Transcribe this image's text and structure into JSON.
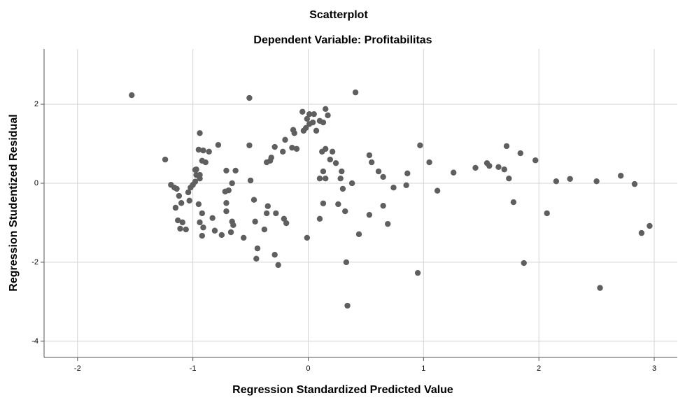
{
  "chart_data": {
    "type": "scatter",
    "title": "Scatterplot",
    "subtitle": "Dependent Variable: Profitabilitas",
    "x_label": "Regression Standardized Predicted Value",
    "y_label": "Regression Studentized Residual",
    "color": "#5f5f5f",
    "grid": true,
    "xlim": [
      -2.29,
      3.2
    ],
    "ylim": [
      -4.41,
      3.4
    ],
    "xticks": [
      -2,
      -1,
      0,
      1,
      2,
      3
    ],
    "yticks": [
      -4,
      -2,
      0,
      2
    ],
    "x": [
      -1.53,
      -1.24,
      -0.51,
      0.41,
      -0.05,
      0.15,
      0.01,
      0.05,
      -0.01,
      0.01,
      0.04,
      -0.02,
      0.1,
      0.13,
      0.17,
      0.07,
      -0.04,
      -0.13,
      -0.2,
      -0.29,
      -0.22,
      -0.32,
      -0.33,
      -0.51,
      -0.78,
      -0.94,
      -0.95,
      -0.91,
      -0.86,
      -0.89,
      -0.92,
      -0.97,
      -0.94,
      -0.97,
      -0.98,
      -1.0,
      -1.02,
      -0.63,
      -0.71,
      -0.66,
      -0.69,
      -0.5,
      -1.19,
      -1.16,
      -1.14,
      -1.12,
      -1.1,
      -1.03,
      -1.15,
      -1.13,
      -1.09,
      -1.06,
      -1.11,
      -0.95,
      -0.92,
      -0.94,
      -0.91,
      -0.92,
      -0.83,
      -0.81,
      -0.75,
      -0.72,
      -0.71,
      -0.71,
      -0.66,
      -0.65,
      -0.67,
      -0.56,
      -0.47,
      -0.46,
      -0.44,
      -0.45,
      -0.38,
      -0.35,
      -0.36,
      -0.28,
      -0.29,
      -0.26,
      -0.21,
      -0.19,
      -0.01,
      0.13,
      0.1,
      0.19,
      0.24,
      0.13,
      0.15,
      0.29,
      0.28,
      0.3,
      0.26,
      0.32,
      0.38,
      0.34,
      0.33,
      0.44,
      0.53,
      0.55,
      0.61,
      0.65,
      0.74,
      0.65,
      0.53,
      0.69,
      0.86,
      0.85,
      0.97,
      1.05,
      1.12,
      1.26,
      1.45,
      1.55,
      1.57,
      1.65,
      1.7,
      1.72,
      1.74,
      1.78,
      1.84,
      1.87,
      1.97,
      2.07,
      2.15,
      2.27,
      2.5,
      2.53,
      2.71,
      2.83,
      2.89,
      2.96,
      0.95,
      -0.36,
      -0.14,
      0.15,
      0.21,
      0.12,
      0.1,
      -1.04,
      -0.98,
      -0.94,
      -0.12,
      -0.1
    ],
    "values": [
      2.23,
      0.6,
      2.16,
      2.3,
      1.81,
      1.88,
      1.75,
      1.75,
      1.63,
      1.5,
      1.54,
      1.4,
      1.58,
      1.54,
      1.72,
      1.33,
      1.33,
      1.35,
      1.1,
      0.92,
      0.8,
      0.65,
      0.57,
      0.96,
      0.97,
      1.27,
      0.85,
      0.83,
      0.8,
      0.53,
      0.57,
      0.35,
      0.12,
      0.21,
      0.04,
      -0.04,
      -0.11,
      0.32,
      0.32,
      0.0,
      -0.18,
      0.07,
      -0.04,
      -0.11,
      -0.14,
      -0.32,
      -0.5,
      -0.44,
      -0.62,
      -0.94,
      -0.99,
      -1.17,
      -1.15,
      -0.53,
      -0.76,
      -0.99,
      -1.12,
      -1.33,
      -0.88,
      -1.2,
      -1.31,
      -0.21,
      -0.5,
      -0.71,
      -0.97,
      -1.06,
      -1.24,
      -1.38,
      -0.42,
      -0.97,
      -1.65,
      -1.91,
      -1.17,
      -0.58,
      -0.76,
      -0.76,
      -1.81,
      -2.07,
      -0.9,
      -1.01,
      -1.38,
      -0.51,
      -0.9,
      0.6,
      0.51,
      0.3,
      0.12,
      0.3,
      0.12,
      -0.14,
      -0.53,
      -0.71,
      0.0,
      -3.1,
      -2.0,
      -1.29,
      0.71,
      0.53,
      0.3,
      0.16,
      -0.11,
      -0.57,
      -0.8,
      -1.03,
      0.25,
      -0.05,
      0.96,
      0.53,
      -0.19,
      0.27,
      0.39,
      0.51,
      0.44,
      0.41,
      0.35,
      0.94,
      0.12,
      -0.48,
      0.76,
      -2.02,
      0.58,
      -0.76,
      0.05,
      0.11,
      0.05,
      -2.65,
      0.19,
      -0.02,
      -1.26,
      -1.08,
      -2.27,
      0.53,
      0.9,
      0.87,
      0.8,
      0.8,
      0.12,
      -0.23,
      0.34,
      0.21,
      1.27,
      0.87
    ]
  }
}
